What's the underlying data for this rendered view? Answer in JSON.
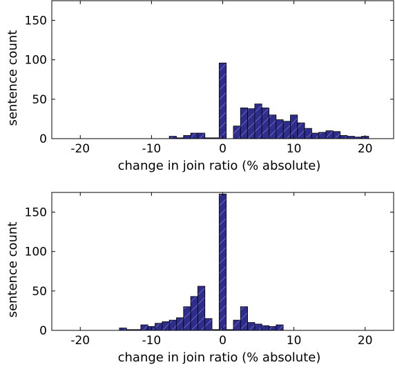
{
  "chart_data": [
    {
      "type": "bar",
      "xlabel": "change in join ratio (% absolute)",
      "ylabel": "sentence count",
      "xlim": [
        -24,
        24
      ],
      "ylim": [
        0,
        175
      ],
      "xticks": [
        -20,
        -10,
        0,
        10,
        20
      ],
      "yticks": [
        0,
        50,
        100,
        150
      ],
      "bin_width": 1,
      "x": [
        -7,
        -6,
        -5,
        -4,
        -3,
        -2,
        -1,
        0,
        1,
        2,
        3,
        4,
        5,
        6,
        7,
        8,
        9,
        10,
        11,
        12,
        13,
        14,
        15,
        16,
        17,
        18,
        19,
        20
      ],
      "values": [
        3,
        1,
        4,
        7,
        7,
        1,
        1,
        96,
        0,
        16,
        39,
        38,
        44,
        39,
        30,
        24,
        22,
        30,
        20,
        13,
        7,
        8,
        10,
        9,
        4,
        3,
        2,
        3
      ],
      "grid": false
    },
    {
      "type": "bar",
      "xlabel": "change in join ratio (% absolute)",
      "ylabel": "sentence count",
      "xlim": [
        -24,
        24
      ],
      "ylim": [
        0,
        175
      ],
      "xticks": [
        -20,
        -10,
        0,
        10,
        20
      ],
      "yticks": [
        0,
        50,
        100,
        150
      ],
      "bin_width": 1,
      "x": [
        -14,
        -13,
        -12,
        -11,
        -10,
        -9,
        -8,
        -7,
        -6,
        -5,
        -4,
        -3,
        -2,
        -1,
        0,
        1,
        2,
        3,
        4,
        5,
        6,
        7,
        8
      ],
      "values": [
        3,
        1,
        1,
        7,
        5,
        9,
        11,
        13,
        16,
        30,
        43,
        56,
        15,
        1,
        173,
        1,
        13,
        30,
        10,
        8,
        6,
        5,
        7
      ],
      "grid": false
    }
  ]
}
